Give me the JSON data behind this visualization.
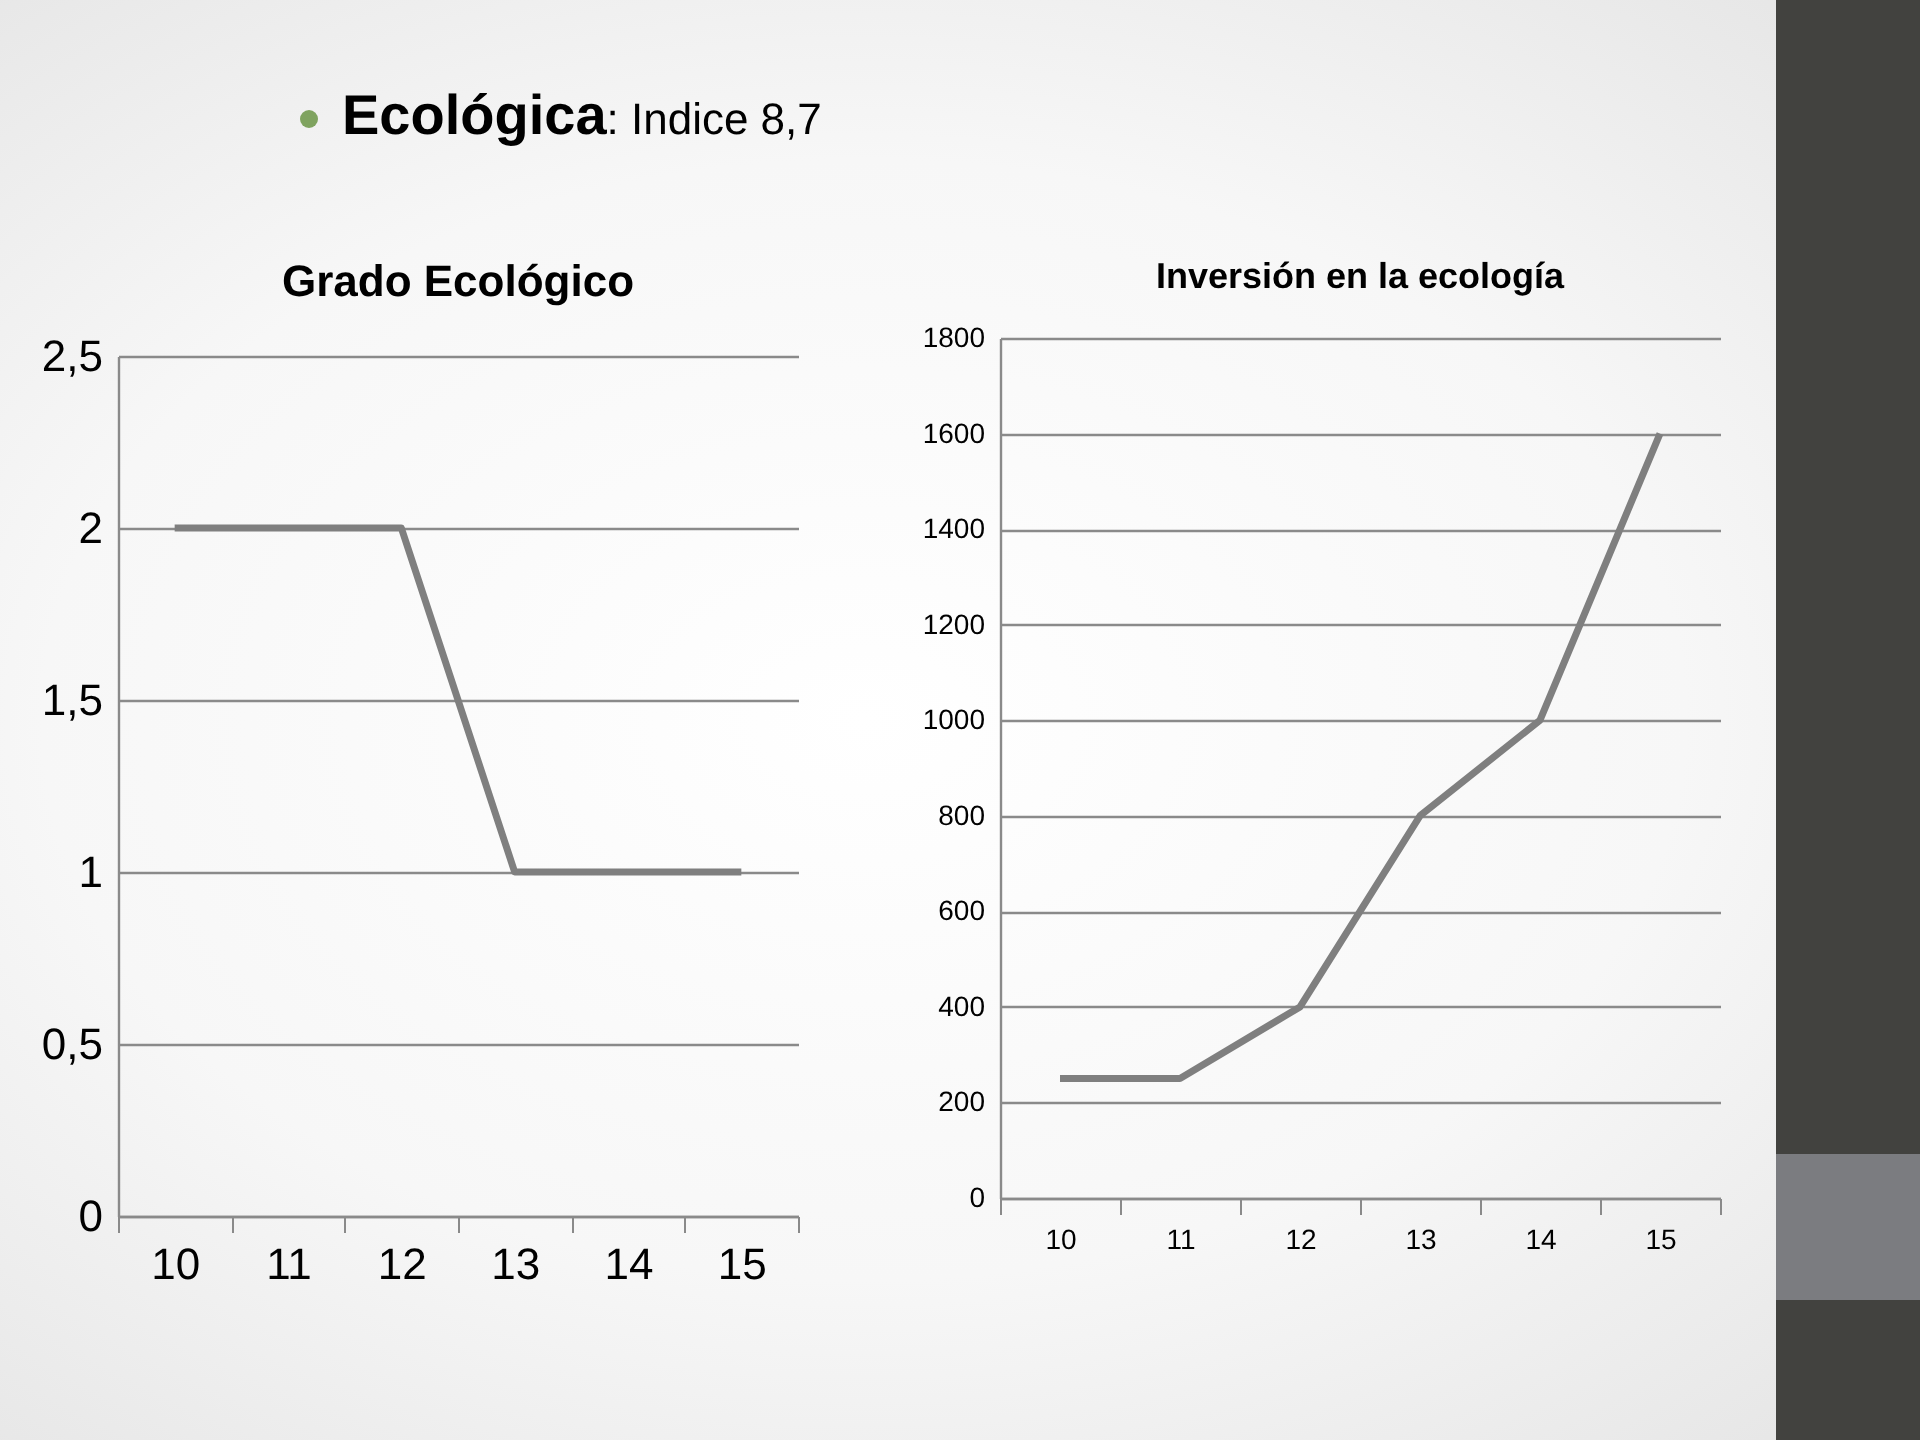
{
  "chart_data": [
    {
      "type": "other",
      "title": "Ecológica",
      "subtitle": ": Indice 8,7"
    },
    {
      "type": "line",
      "title": "Grado Ecológico",
      "categories": [
        "10",
        "11",
        "12",
        "13",
        "14",
        "15"
      ],
      "values": [
        2,
        2,
        2,
        1,
        1,
        1
      ],
      "color": "#7f7f7f",
      "ylim": [
        0,
        2.5
      ],
      "yticks": [
        0,
        {
          "value": 0.5,
          "label": "0,5"
        },
        1,
        {
          "value": 1.5,
          "label": "1,5"
        },
        2,
        {
          "value": 2.5,
          "label": "2,5"
        }
      ],
      "grid": "y"
    },
    {
      "type": "line",
      "title": "Inversión en la ecología",
      "categories": [
        "10",
        "11",
        "12",
        "13",
        "14",
        "15"
      ],
      "values": [
        250,
        250,
        400,
        800,
        1000,
        1600
      ],
      "color": "#7f7f7f",
      "ylim": [
        0,
        1800
      ],
      "yticks": [
        0,
        200,
        400,
        600,
        800,
        1000,
        1200,
        1400,
        1600,
        1800
      ],
      "grid": "y"
    }
  ]
}
